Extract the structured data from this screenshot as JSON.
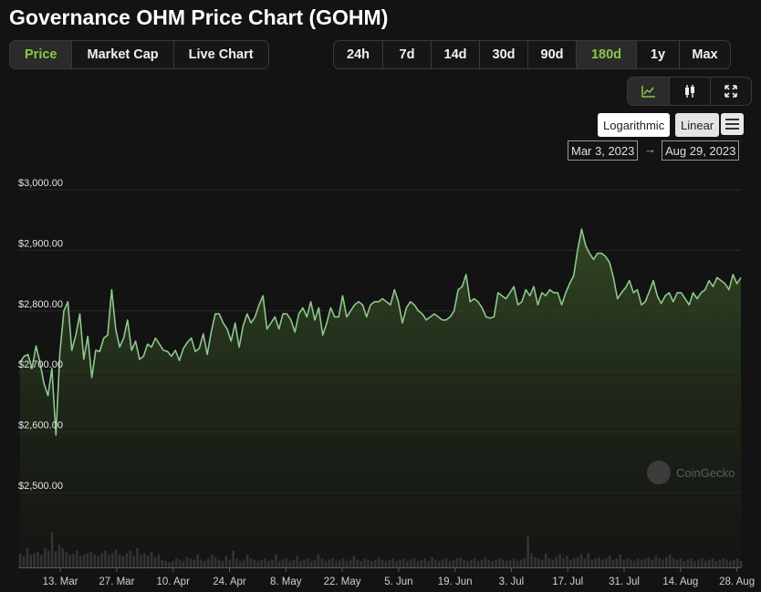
{
  "title": "Governance OHM Price Chart (GOHM)",
  "view_tabs": [
    {
      "label": "Price",
      "active": true
    },
    {
      "label": "Market Cap",
      "active": false
    },
    {
      "label": "Live Chart",
      "active": false
    }
  ],
  "range_tabs": [
    {
      "label": "24h",
      "active": false
    },
    {
      "label": "7d",
      "active": false
    },
    {
      "label": "14d",
      "active": false
    },
    {
      "label": "30d",
      "active": false
    },
    {
      "label": "90d",
      "active": false
    },
    {
      "label": "180d",
      "active": true
    },
    {
      "label": "1y",
      "active": false
    },
    {
      "label": "Max",
      "active": false
    }
  ],
  "chart_type_icons": [
    "line-chart-icon",
    "candlestick-icon",
    "fullscreen-icon"
  ],
  "scale": {
    "logarithmic_label": "Logarithmic",
    "linear_label": "Linear",
    "active": "linear"
  },
  "date_range": {
    "from": "Mar 3, 2023",
    "arrow": "→",
    "to": "Aug 29, 2023"
  },
  "watermark": "CoinGecko",
  "colors": {
    "line": "#8cc88c",
    "accent": "#8dc647",
    "volume": "#3a3a3a",
    "grid": "#2a2a2a"
  },
  "chart_data": {
    "type": "area",
    "ylim": [
      2500,
      3000
    ],
    "ytick_values": [
      3000,
      2900,
      2800,
      2700,
      2600,
      2500
    ],
    "ytick_labels": [
      "$3,000.00",
      "$2,900.00",
      "$2,800.00",
      "$2,700.00",
      "$2,600.00",
      "$2,500.00"
    ],
    "xtick_labels": [
      "13. Mar",
      "27. Mar",
      "10. Apr",
      "24. Apr",
      "8. May",
      "22. May",
      "5. Jun",
      "19. Jun",
      "3. Jul",
      "17. Jul",
      "31. Jul",
      "14. Aug",
      "28. Aug"
    ],
    "xtick_days": [
      10,
      24,
      38,
      52,
      66,
      80,
      94,
      108,
      122,
      136,
      150,
      164,
      178
    ],
    "series": [
      {
        "values": [
          2715,
          2725,
          2728,
          2705,
          2742,
          2715,
          2680,
          2660,
          2705,
          2595,
          2730,
          2800,
          2815,
          2735,
          2760,
          2795,
          2720,
          2758,
          2690,
          2735,
          2733,
          2755,
          2760,
          2835,
          2770,
          2740,
          2755,
          2785,
          2735,
          2750,
          2720,
          2725,
          2745,
          2740,
          2755,
          2745,
          2735,
          2733,
          2725,
          2735,
          2718,
          2738,
          2748,
          2755,
          2733,
          2738,
          2762,
          2728,
          2765,
          2795,
          2795,
          2780,
          2770,
          2750,
          2780,
          2740,
          2775,
          2795,
          2780,
          2790,
          2810,
          2825,
          2770,
          2780,
          2790,
          2770,
          2795,
          2795,
          2785,
          2765,
          2795,
          2805,
          2790,
          2815,
          2785,
          2805,
          2760,
          2780,
          2805,
          2790,
          2790,
          2825,
          2790,
          2800,
          2810,
          2815,
          2810,
          2790,
          2810,
          2815,
          2815,
          2820,
          2815,
          2810,
          2835,
          2815,
          2780,
          2805,
          2815,
          2810,
          2800,
          2795,
          2785,
          2790,
          2795,
          2790,
          2785,
          2785,
          2790,
          2800,
          2835,
          2840,
          2860,
          2815,
          2820,
          2815,
          2805,
          2790,
          2788,
          2790,
          2830,
          2825,
          2820,
          2830,
          2840,
          2810,
          2815,
          2835,
          2825,
          2840,
          2810,
          2830,
          2825,
          2835,
          2830,
          2830,
          2810,
          2830,
          2845,
          2858,
          2900,
          2935,
          2908,
          2895,
          2885,
          2895,
          2895,
          2890,
          2880,
          2855,
          2820,
          2830,
          2838,
          2850,
          2830,
          2835,
          2810,
          2815,
          2832,
          2850,
          2825,
          2812,
          2825,
          2830,
          2815,
          2830,
          2830,
          2820,
          2810,
          2830,
          2820,
          2830,
          2835,
          2850,
          2840,
          2855,
          2850,
          2845,
          2835,
          2860,
          2845,
          2855
        ],
        "note_count": 0
      }
    ],
    "volume": [
      0.22,
      0.18,
      0.3,
      0.2,
      0.22,
      0.24,
      0.19,
      0.3,
      0.26,
      0.55,
      0.25,
      0.35,
      0.3,
      0.24,
      0.2,
      0.22,
      0.26,
      0.18,
      0.2,
      0.22,
      0.24,
      0.2,
      0.18,
      0.22,
      0.26,
      0.2,
      0.22,
      0.28,
      0.2,
      0.18,
      0.22,
      0.26,
      0.18,
      0.3,
      0.2,
      0.22,
      0.18,
      0.24,
      0.16,
      0.2,
      0.12,
      0.1,
      0.08,
      0.1,
      0.14,
      0.12,
      0.1,
      0.16,
      0.14,
      0.12,
      0.2,
      0.12,
      0.1,
      0.14,
      0.2,
      0.16,
      0.12,
      0.1,
      0.18,
      0.12,
      0.26,
      0.14,
      0.1,
      0.12,
      0.2,
      0.14,
      0.12,
      0.1,
      0.12,
      0.14,
      0.1,
      0.12,
      0.2,
      0.1,
      0.12,
      0.14,
      0.1,
      0.12,
      0.18,
      0.1,
      0.12,
      0.14,
      0.1,
      0.12,
      0.2,
      0.14,
      0.1,
      0.12,
      0.14,
      0.1,
      0.12,
      0.14,
      0.1,
      0.12,
      0.18,
      0.12,
      0.1,
      0.14,
      0.12,
      0.1,
      0.12,
      0.16,
      0.12,
      0.1,
      0.12,
      0.14,
      0.1,
      0.12,
      0.14,
      0.1,
      0.12,
      0.14,
      0.1,
      0.12,
      0.14,
      0.1,
      0.16,
      0.12,
      0.1,
      0.12,
      0.14,
      0.1,
      0.12,
      0.14,
      0.16,
      0.12,
      0.1,
      0.12,
      0.14,
      0.1,
      0.12,
      0.16,
      0.12,
      0.1,
      0.12,
      0.14,
      0.12,
      0.1,
      0.12,
      0.14,
      0.1,
      0.12,
      0.14,
      0.5,
      0.22,
      0.16,
      0.14,
      0.12,
      0.22,
      0.14,
      0.12,
      0.16,
      0.2,
      0.14,
      0.18,
      0.12,
      0.14,
      0.16,
      0.2,
      0.14,
      0.22,
      0.12,
      0.14,
      0.16,
      0.12,
      0.14,
      0.18,
      0.12,
      0.14,
      0.2,
      0.12,
      0.14,
      0.12,
      0.1,
      0.14,
      0.12,
      0.14,
      0.16,
      0.12,
      0.18,
      0.14,
      0.12,
      0.16,
      0.2,
      0.14,
      0.12,
      0.14,
      0.1,
      0.12,
      0.14,
      0.1,
      0.12,
      0.14,
      0.1,
      0.12,
      0.14,
      0.1,
      0.12,
      0.14,
      0.12,
      0.1,
      0.12,
      0.14,
      0.1
    ]
  }
}
